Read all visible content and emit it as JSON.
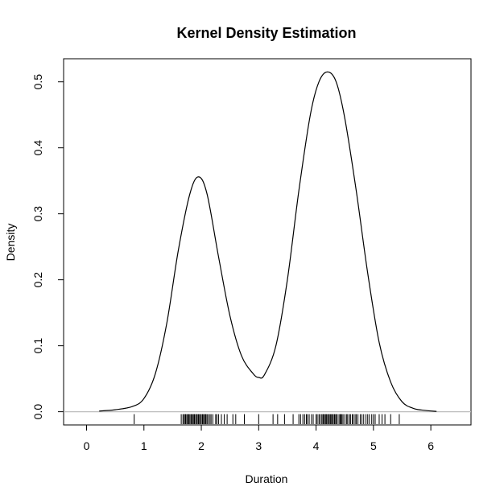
{
  "chart_data": {
    "type": "line",
    "title": "Kernel Density Estimation",
    "xlabel": "Duration",
    "ylabel": "Density",
    "xlim": [
      -0.4,
      6.7
    ],
    "ylim": [
      -0.02,
      0.535
    ],
    "x_ticks": [
      "0",
      "1",
      "2",
      "3",
      "4",
      "5",
      "6"
    ],
    "y_ticks": [
      "0.0",
      "0.1",
      "0.2",
      "0.3",
      "0.4",
      "0.5"
    ],
    "grid": false,
    "zero_line": true,
    "series": [
      {
        "x": [
          0.22,
          0.5,
          0.8,
          1.0,
          1.2,
          1.4,
          1.6,
          1.8,
          1.95,
          2.1,
          2.3,
          2.5,
          2.7,
          2.9,
          3.0,
          3.1,
          3.3,
          3.5,
          3.7,
          3.9,
          4.05,
          4.2,
          4.35,
          4.5,
          4.7,
          4.9,
          5.1,
          5.3,
          5.5,
          5.7,
          5.9,
          6.1
        ],
        "y": [
          0.001,
          0.003,
          0.008,
          0.02,
          0.058,
          0.135,
          0.245,
          0.33,
          0.356,
          0.33,
          0.235,
          0.145,
          0.085,
          0.058,
          0.052,
          0.056,
          0.1,
          0.2,
          0.335,
          0.45,
          0.5,
          0.515,
          0.5,
          0.445,
          0.335,
          0.21,
          0.105,
          0.045,
          0.015,
          0.005,
          0.002,
          0.0005
        ]
      }
    ],
    "rug": [
      0.83,
      1.65,
      1.68,
      1.7,
      1.72,
      1.73,
      1.75,
      1.77,
      1.78,
      1.8,
      1.82,
      1.83,
      1.85,
      1.87,
      1.88,
      1.9,
      1.92,
      1.93,
      1.95,
      1.97,
      1.98,
      2.0,
      2.02,
      2.03,
      2.05,
      2.07,
      2.08,
      2.1,
      2.12,
      2.15,
      2.17,
      2.2,
      2.25,
      2.27,
      2.3,
      2.35,
      2.4,
      2.45,
      2.55,
      2.6,
      2.75,
      3.0,
      3.25,
      3.33,
      3.45,
      3.6,
      3.7,
      3.73,
      3.77,
      3.8,
      3.83,
      3.85,
      3.88,
      3.92,
      3.95,
      4.0,
      4.02,
      4.05,
      4.07,
      4.1,
      4.12,
      4.13,
      4.15,
      4.17,
      4.18,
      4.2,
      4.22,
      4.23,
      4.25,
      4.27,
      4.28,
      4.3,
      4.32,
      4.33,
      4.35,
      4.37,
      4.4,
      4.42,
      4.43,
      4.45,
      4.47,
      4.5,
      4.53,
      4.55,
      4.58,
      4.6,
      4.63,
      4.65,
      4.68,
      4.7,
      4.73,
      4.77,
      4.8,
      4.83,
      4.87,
      4.9,
      4.93,
      4.97,
      5.0,
      5.03,
      5.1,
      5.15,
      5.2,
      5.3,
      5.45
    ]
  }
}
